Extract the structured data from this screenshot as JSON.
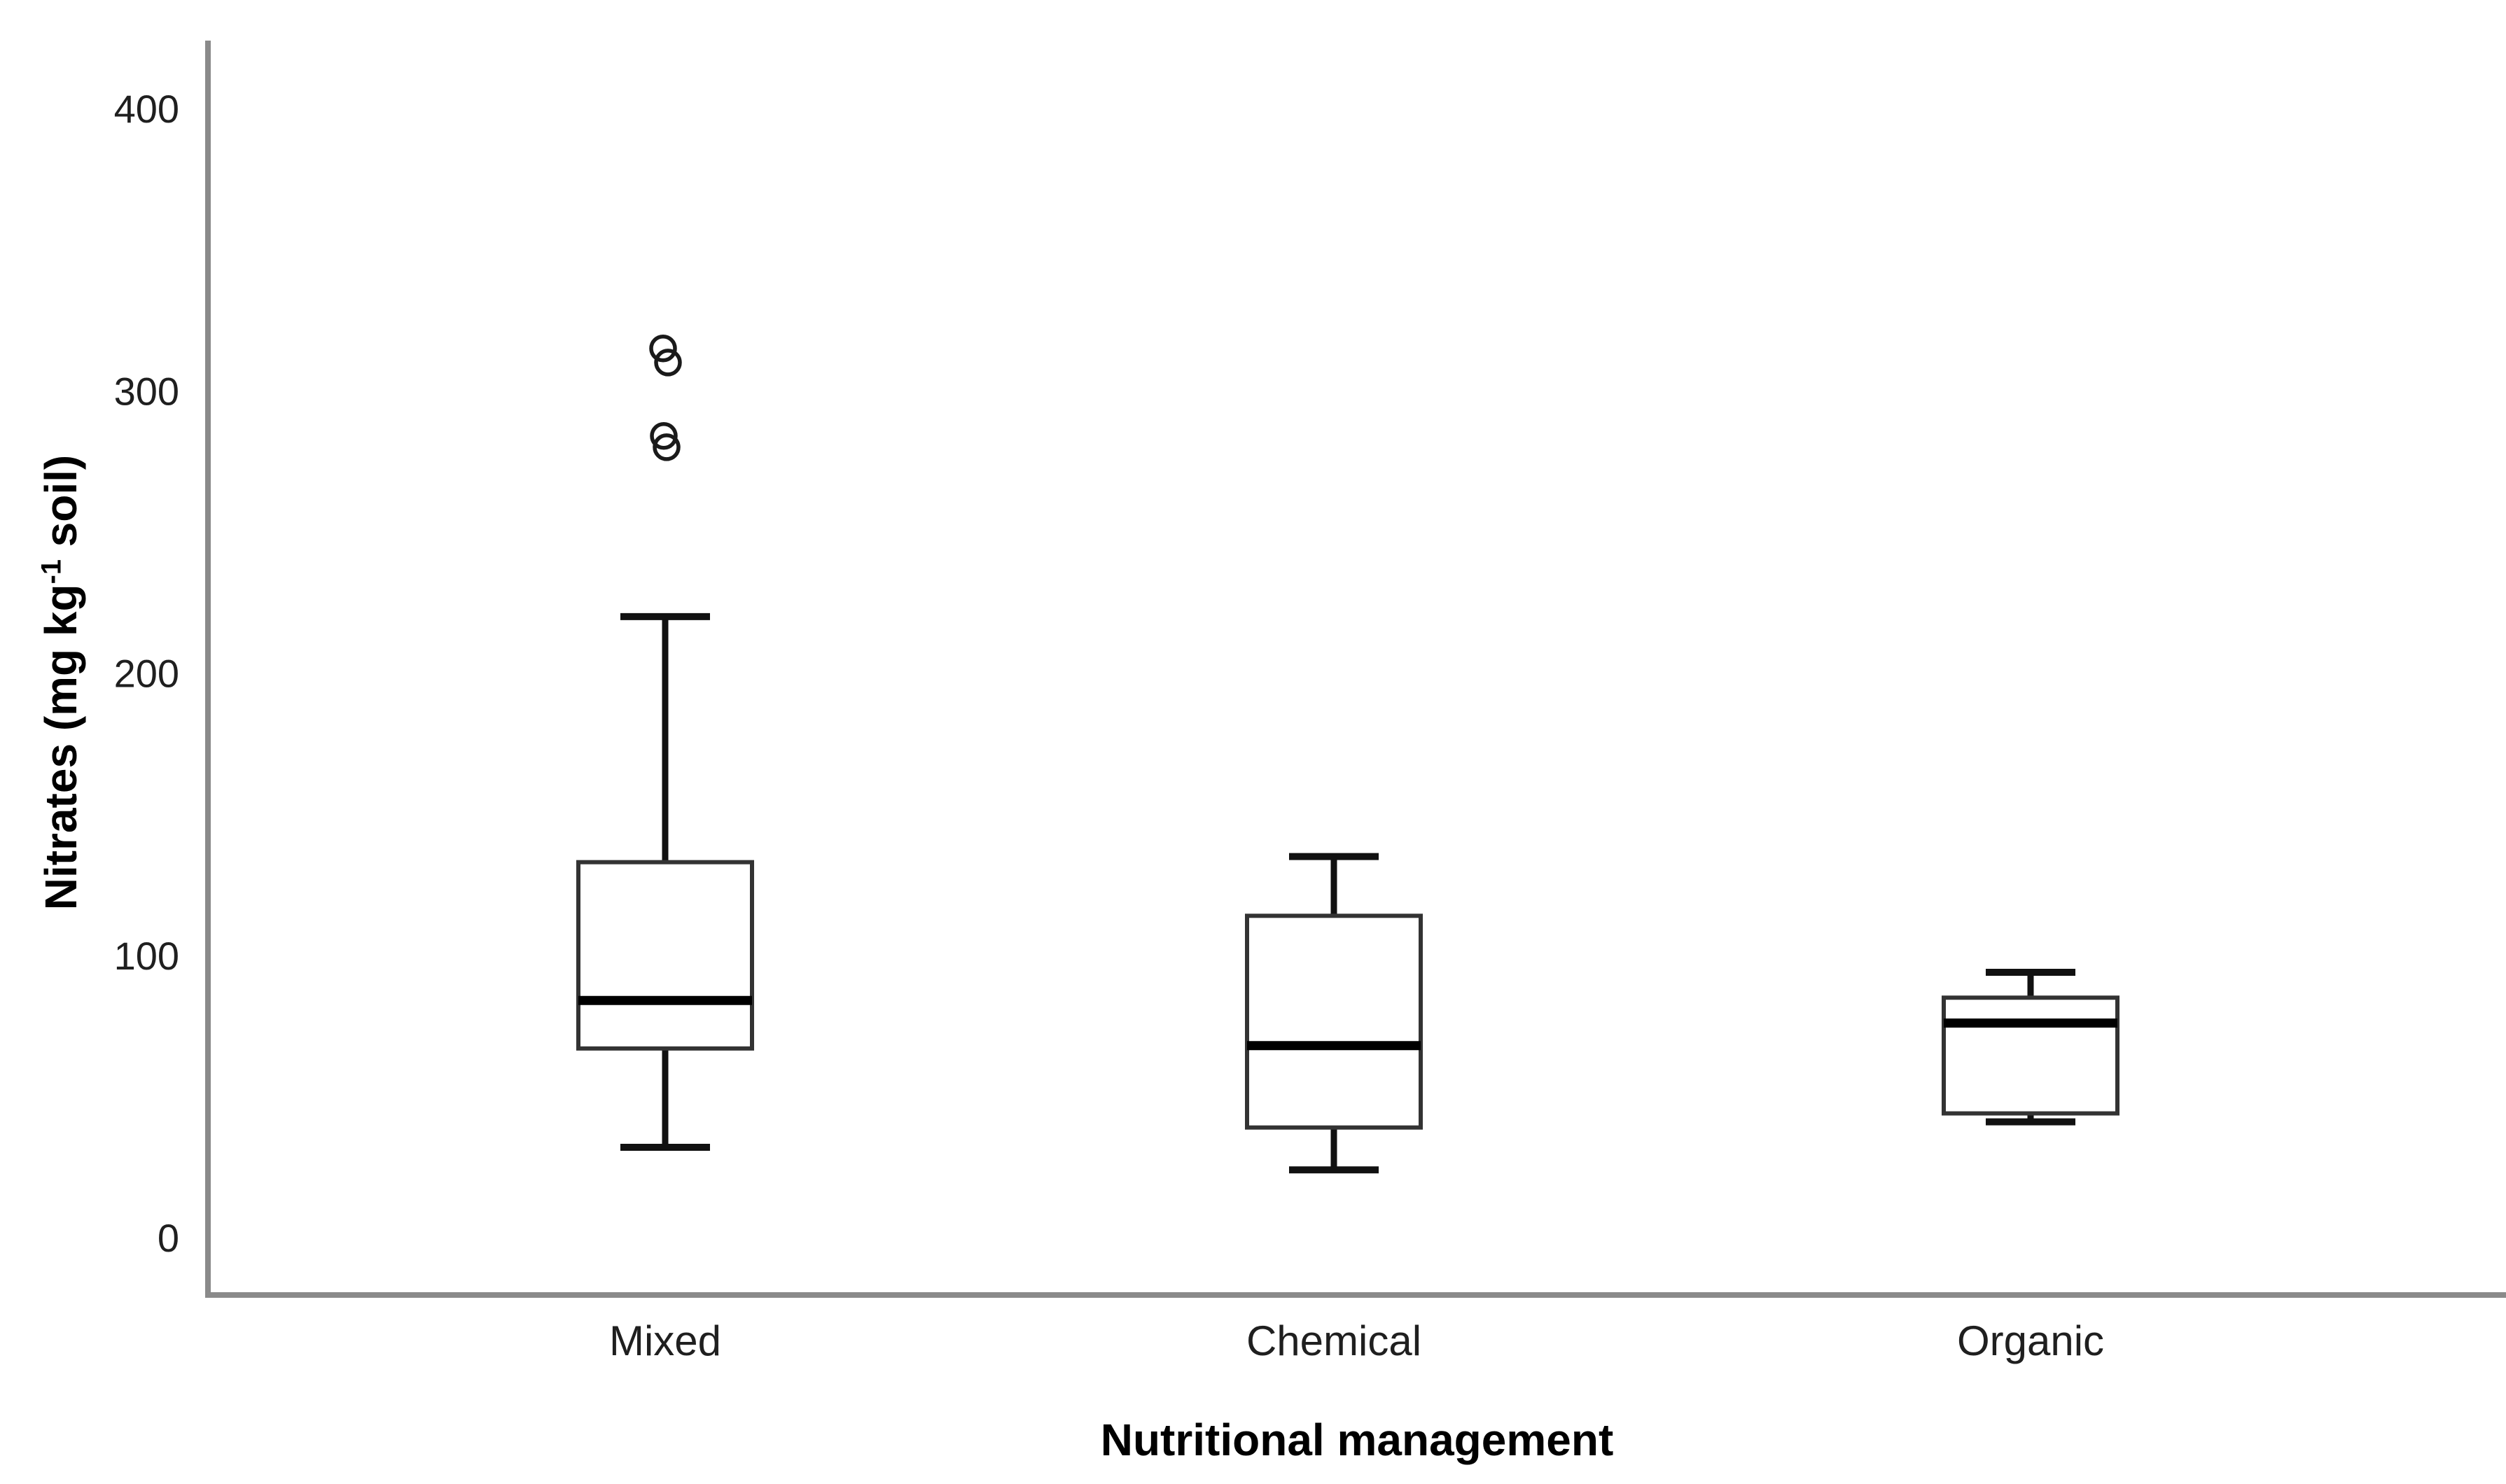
{
  "chart_data": {
    "type": "boxplot",
    "title": "",
    "xlabel": "Nutritional management",
    "ylabel": "Nitrates (mg kg⁻¹ soil)",
    "ylabel_parts": {
      "pre": "Nitrates (mg kg",
      "sup": "-1",
      "post": " soil)"
    },
    "ylim": [
      0,
      424
    ],
    "y_ticks": [
      0,
      100,
      200,
      300,
      400
    ],
    "y_tick_labels": [
      "0",
      "100",
      "200",
      "300",
      "400"
    ],
    "grid": false,
    "legend": "none",
    "categories": [
      "Mixed",
      "Chemical",
      "Organic"
    ],
    "series": [
      {
        "category": "Mixed",
        "whisker_low": 32,
        "q1": 67,
        "median": 84,
        "q3": 133,
        "whisker_high": 220,
        "outliers": [
          280,
          284,
          310,
          315
        ]
      },
      {
        "category": "Chemical",
        "whisker_low": 24,
        "q1": 39,
        "median": 68,
        "q3": 114,
        "whisker_high": 135,
        "outliers": []
      },
      {
        "category": "Organic",
        "whisker_low": 41,
        "q1": 44,
        "median": 76,
        "q3": 85,
        "whisker_high": 94,
        "outliers": []
      }
    ]
  },
  "colors": {
    "background": "#ffffff",
    "axis_line": "#8a8a8a",
    "box_stroke": "#333333",
    "box_fill": "#ffffff",
    "median": "#000000",
    "whisker": "#111111",
    "outlier": "#1a1a1a",
    "text": "#1f1f1f",
    "title_text": "#000000"
  }
}
